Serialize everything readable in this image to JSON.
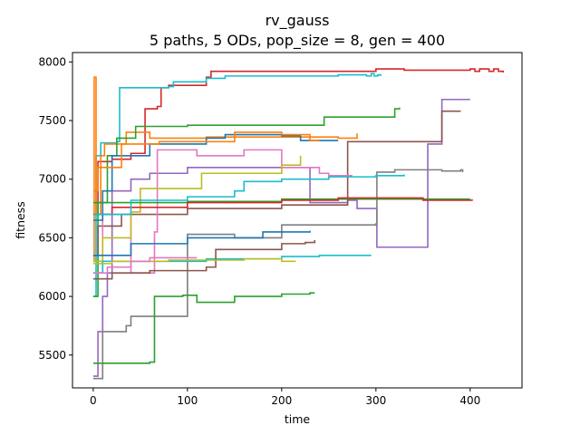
{
  "chart_data": {
    "type": "line",
    "title": "rv_gauss",
    "subtitle": "5 paths, 5 ODs, pop_size = 8, gen = 400",
    "xlabel": "time",
    "ylabel": "fitness",
    "xlim": [
      -22,
      455
    ],
    "ylim": [
      5220,
      8080
    ],
    "x_ticks": [
      0,
      100,
      200,
      300,
      400
    ],
    "y_ticks": [
      5500,
      6000,
      6500,
      7000,
      7500,
      8000
    ],
    "x_tick_labels": [
      "0",
      "100",
      "200",
      "300",
      "400"
    ],
    "y_tick_labels": [
      "5500",
      "6000",
      "6500",
      "7000",
      "7500",
      "8000"
    ],
    "grid": false,
    "legend": "none",
    "series": [
      {
        "color": "#d62728",
        "points": [
          [
            0,
            6700
          ],
          [
            5,
            7150
          ],
          [
            20,
            7170
          ],
          [
            40,
            7220
          ],
          [
            55,
            7600
          ],
          [
            68,
            7620
          ],
          [
            72,
            7780
          ],
          [
            80,
            7800
          ],
          [
            120,
            7870
          ],
          [
            125,
            7920
          ],
          [
            300,
            7940
          ],
          [
            330,
            7930
          ],
          [
            400,
            7940
          ],
          [
            405,
            7920
          ],
          [
            410,
            7940
          ],
          [
            420,
            7920
          ],
          [
            425,
            7940
          ],
          [
            430,
            7920
          ],
          [
            435,
            7910
          ]
        ]
      },
      {
        "color": "#17becf",
        "points": [
          [
            0,
            6000
          ],
          [
            3,
            7200
          ],
          [
            8,
            7310
          ],
          [
            25,
            7320
          ],
          [
            28,
            7780
          ],
          [
            80,
            7790
          ],
          [
            85,
            7830
          ],
          [
            120,
            7860
          ],
          [
            140,
            7880
          ],
          [
            260,
            7890
          ],
          [
            290,
            7880
          ],
          [
            295,
            7900
          ],
          [
            298,
            7880
          ],
          [
            302,
            7890
          ],
          [
            305,
            7880
          ]
        ]
      },
      {
        "color": "#ff7f0e",
        "points": [
          [
            0,
            6300
          ],
          [
            1,
            7870
          ],
          [
            3,
            6700
          ],
          [
            8,
            7200
          ],
          [
            12,
            7300
          ],
          [
            35,
            7400
          ],
          [
            60,
            7350
          ],
          [
            120,
            7360
          ],
          [
            260,
            7350
          ],
          [
            280,
            7390
          ]
        ]
      },
      {
        "color": "#2ca02c",
        "points": [
          [
            0,
            6000
          ],
          [
            5,
            6800
          ],
          [
            15,
            7200
          ],
          [
            25,
            7350
          ],
          [
            45,
            7450
          ],
          [
            100,
            7460
          ],
          [
            240,
            7460
          ],
          [
            245,
            7530
          ],
          [
            320,
            7600
          ],
          [
            325,
            7610
          ]
        ]
      },
      {
        "color": "#9467bd",
        "points": [
          [
            0,
            5320
          ],
          [
            5,
            5700
          ],
          [
            10,
            6000
          ],
          [
            15,
            6200
          ],
          [
            20,
            6900
          ],
          [
            40,
            7000
          ],
          [
            60,
            7050
          ],
          [
            100,
            7100
          ],
          [
            220,
            7100
          ],
          [
            230,
            6800
          ],
          [
            270,
            6820
          ],
          [
            280,
            6750
          ],
          [
            300,
            6750
          ],
          [
            301,
            6420
          ],
          [
            350,
            6420
          ],
          [
            355,
            7300
          ],
          [
            370,
            7680
          ],
          [
            400,
            7680
          ]
        ]
      },
      {
        "color": "#8c564b",
        "points": [
          [
            0,
            6350
          ],
          [
            5,
            6600
          ],
          [
            30,
            6700
          ],
          [
            100,
            6750
          ],
          [
            200,
            6780
          ],
          [
            270,
            7320
          ],
          [
            365,
            7320
          ],
          [
            370,
            7580
          ],
          [
            390,
            7580
          ]
        ]
      },
      {
        "color": "#e377c2",
        "points": [
          [
            0,
            6200
          ],
          [
            10,
            6700
          ],
          [
            20,
            6700
          ],
          [
            40,
            6200
          ],
          [
            60,
            6200
          ],
          [
            65,
            6550
          ],
          [
            68,
            7250
          ],
          [
            110,
            7200
          ],
          [
            160,
            7250
          ],
          [
            200,
            7100
          ],
          [
            240,
            7050
          ],
          [
            250,
            7030
          ],
          [
            275,
            7030
          ]
        ]
      },
      {
        "color": "#7f7f7f",
        "points": [
          [
            0,
            5300
          ],
          [
            10,
            5700
          ],
          [
            35,
            5750
          ],
          [
            40,
            5830
          ],
          [
            95,
            5830
          ],
          [
            100,
            6530
          ],
          [
            150,
            6500
          ],
          [
            200,
            6610
          ],
          [
            300,
            6620
          ],
          [
            301,
            7060
          ],
          [
            320,
            7080
          ],
          [
            370,
            7070
          ],
          [
            390,
            7080
          ],
          [
            392,
            7060
          ]
        ]
      },
      {
        "color": "#bcbd22",
        "points": [
          [
            0,
            6300
          ],
          [
            10,
            6500
          ],
          [
            40,
            6720
          ],
          [
            50,
            6920
          ],
          [
            110,
            6920
          ],
          [
            115,
            7050
          ],
          [
            200,
            7120
          ],
          [
            220,
            7200
          ]
        ]
      },
      {
        "color": "#1f77b4",
        "points": [
          [
            0,
            6650
          ],
          [
            10,
            6900
          ],
          [
            20,
            7200
          ],
          [
            60,
            7300
          ],
          [
            120,
            7350
          ],
          [
            140,
            7380
          ],
          [
            200,
            7370
          ],
          [
            220,
            7330
          ],
          [
            260,
            7330
          ]
        ]
      },
      {
        "color": "#2ca02c",
        "points": [
          [
            0,
            5430
          ],
          [
            60,
            5440
          ],
          [
            65,
            6000
          ],
          [
            95,
            6010
          ],
          [
            110,
            5950
          ],
          [
            150,
            6000
          ],
          [
            200,
            6020
          ],
          [
            230,
            6030
          ],
          [
            235,
            6030
          ]
        ]
      },
      {
        "color": "#17becf",
        "points": [
          [
            0,
            6200
          ],
          [
            10,
            6300
          ],
          [
            50,
            6300
          ],
          [
            120,
            6320
          ],
          [
            200,
            6340
          ],
          [
            240,
            6350
          ],
          [
            295,
            6350
          ]
        ]
      },
      {
        "color": "#8c564b",
        "points": [
          [
            0,
            6150
          ],
          [
            20,
            6200
          ],
          [
            60,
            6220
          ],
          [
            120,
            6250
          ],
          [
            130,
            6400
          ],
          [
            200,
            6450
          ],
          [
            225,
            6460
          ],
          [
            235,
            6480
          ]
        ]
      },
      {
        "color": "#bcbd22",
        "points": [
          [
            0,
            6280
          ],
          [
            20,
            6300
          ],
          [
            80,
            6310
          ],
          [
            160,
            6320
          ],
          [
            200,
            6300
          ],
          [
            215,
            6300
          ]
        ]
      },
      {
        "color": "#1f77b4",
        "points": [
          [
            0,
            6350
          ],
          [
            40,
            6450
          ],
          [
            100,
            6500
          ],
          [
            180,
            6550
          ],
          [
            230,
            6560
          ]
        ]
      },
      {
        "color": "#2ca02c",
        "points": [
          [
            0,
            6800
          ],
          [
            30,
            6800
          ],
          [
            100,
            6810
          ],
          [
            200,
            6830
          ],
          [
            300,
            6830
          ],
          [
            400,
            6830
          ]
        ]
      },
      {
        "color": "#d62728",
        "points": [
          [
            0,
            6700
          ],
          [
            20,
            6760
          ],
          [
            100,
            6800
          ],
          [
            200,
            6820
          ],
          [
            260,
            6840
          ],
          [
            350,
            6820
          ],
          [
            400,
            6820
          ],
          [
            402,
            6830
          ]
        ]
      },
      {
        "color": "#17becf",
        "points": [
          [
            0,
            6700
          ],
          [
            40,
            6820
          ],
          [
            100,
            6850
          ],
          [
            150,
            6900
          ],
          [
            160,
            6980
          ],
          [
            200,
            7000
          ],
          [
            250,
            7020
          ],
          [
            300,
            7030
          ],
          [
            330,
            7040
          ]
        ]
      },
      {
        "color": "#ff7f0e",
        "points": [
          [
            0,
            6900
          ],
          [
            5,
            7100
          ],
          [
            30,
            7300
          ],
          [
            70,
            7320
          ],
          [
            150,
            7400
          ],
          [
            200,
            7380
          ],
          [
            230,
            7330
          ],
          [
            240,
            7330
          ]
        ]
      },
      {
        "color": "#e377c2",
        "points": [
          [
            0,
            6200
          ],
          [
            15,
            6250
          ],
          [
            40,
            6300
          ],
          [
            60,
            6330
          ],
          [
            110,
            6330
          ]
        ]
      }
    ]
  }
}
